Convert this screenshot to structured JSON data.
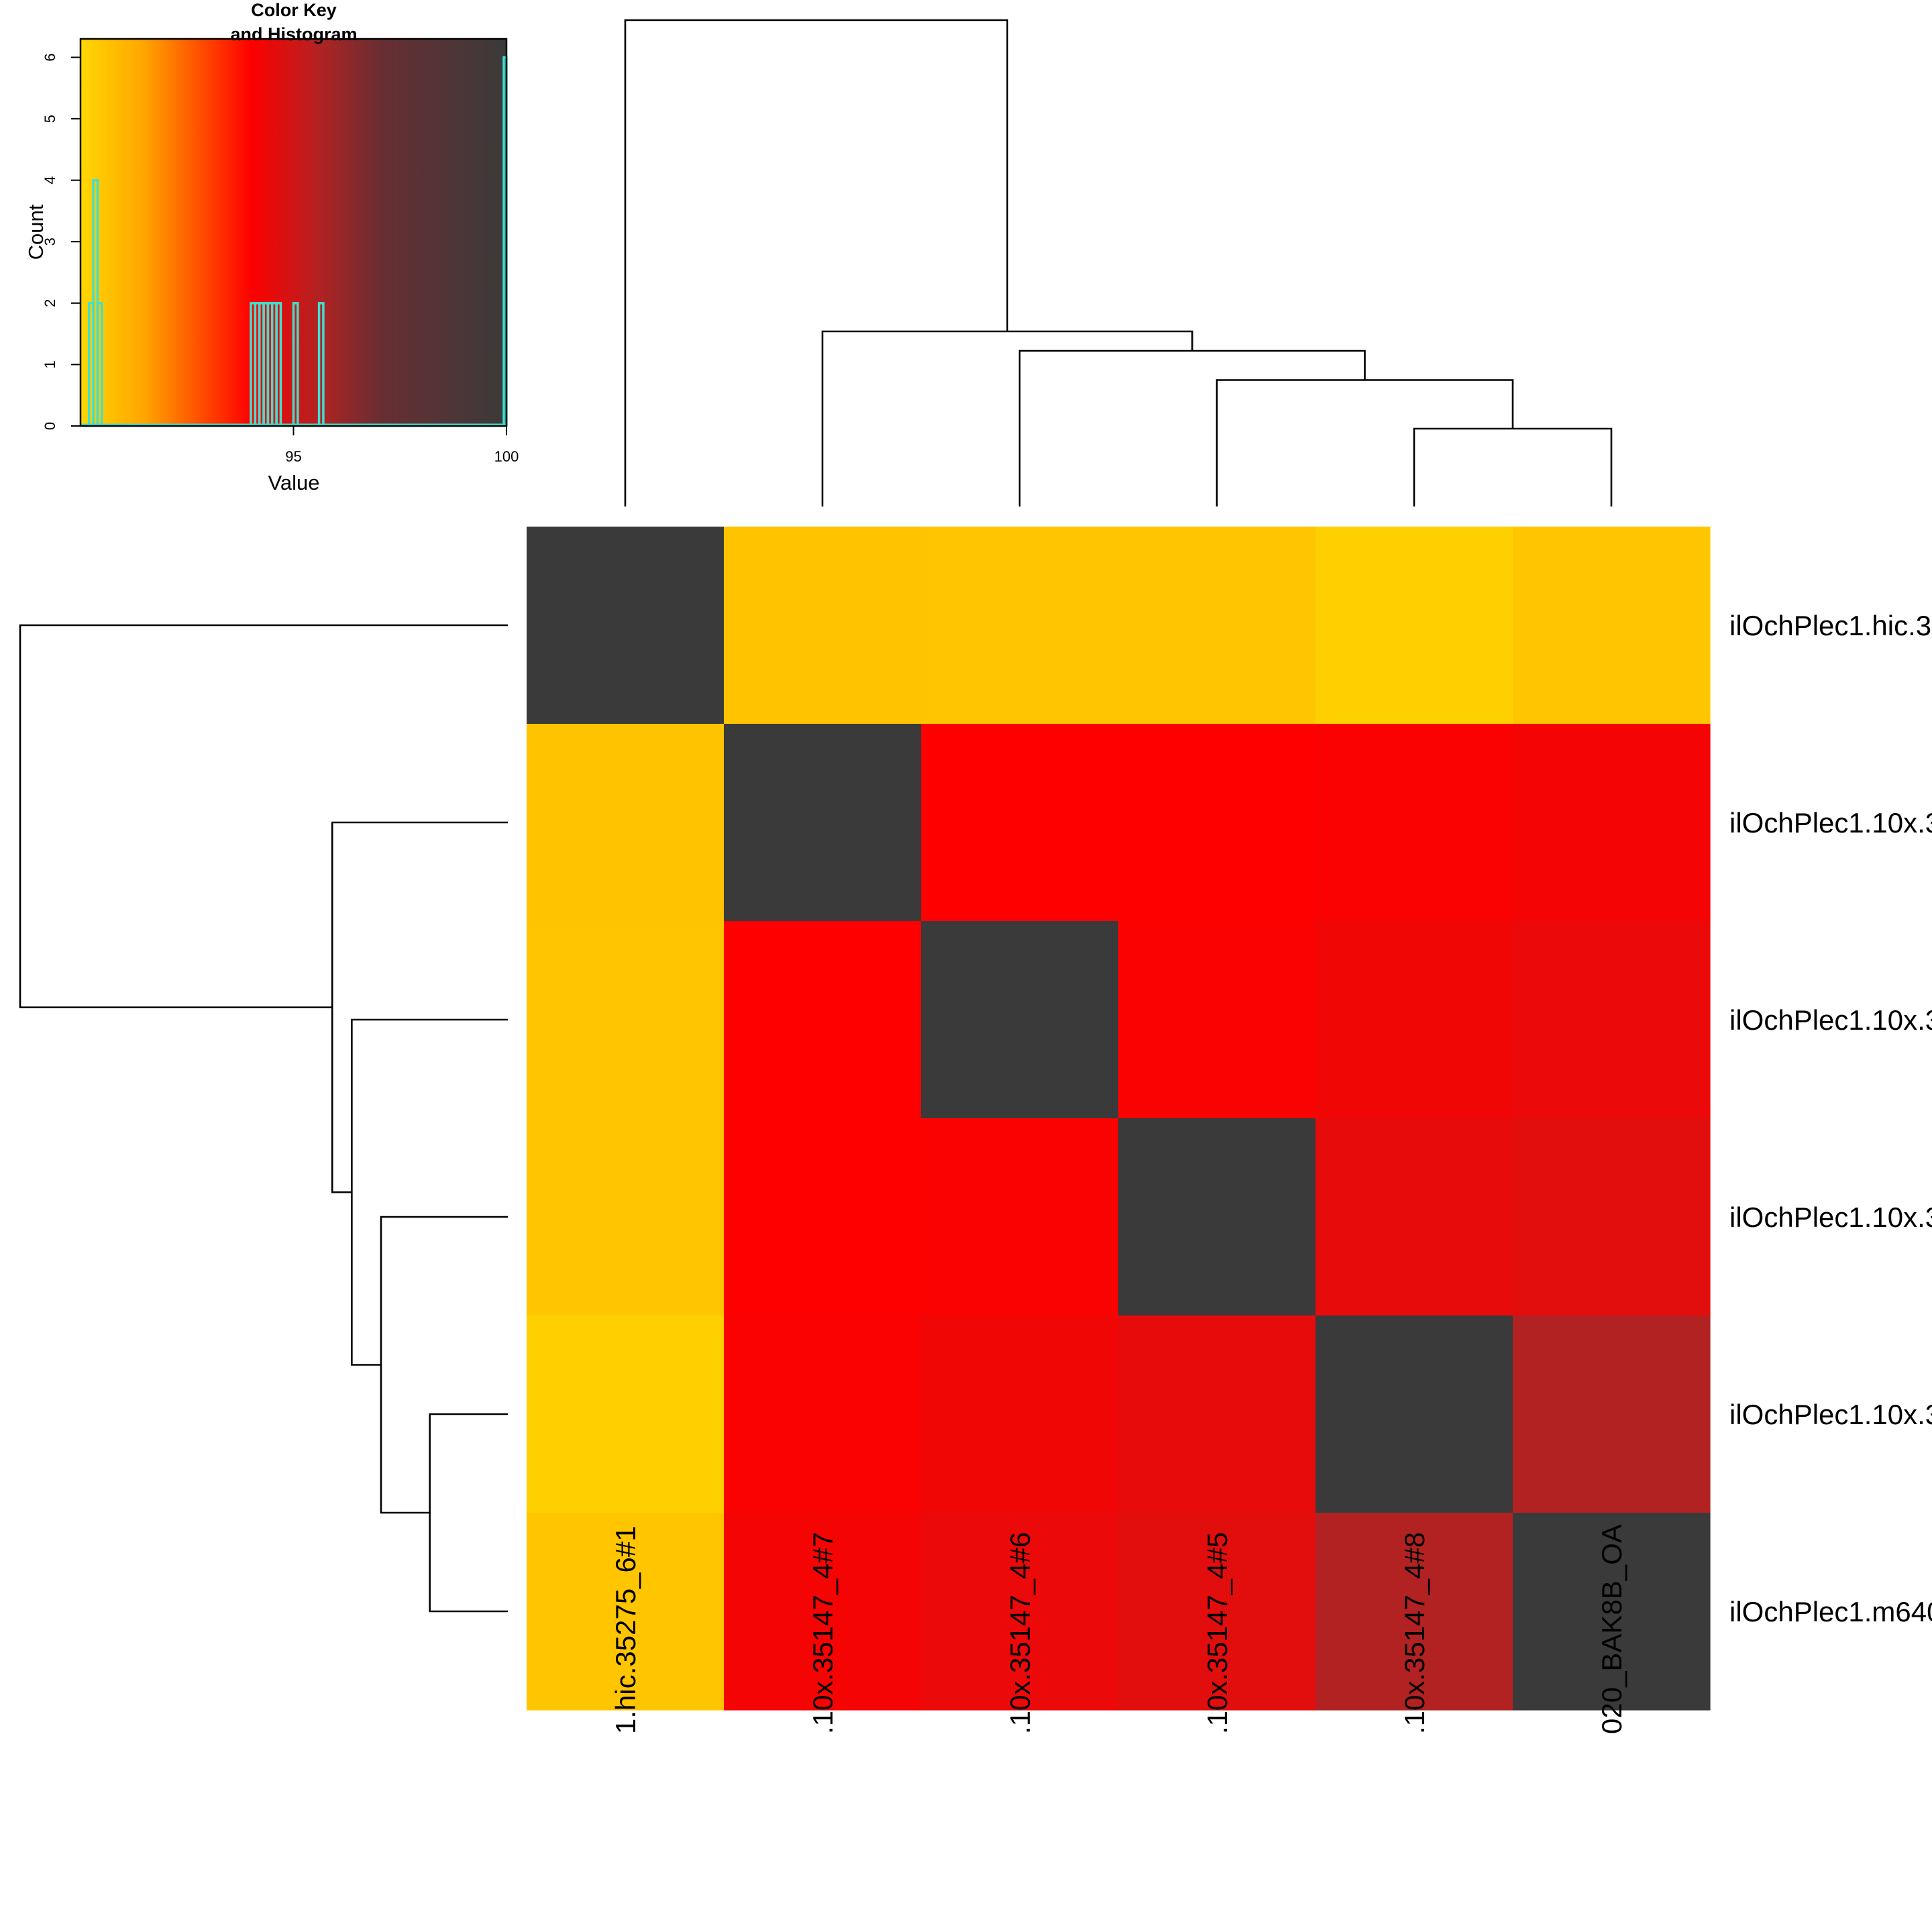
{
  "chart_data": [
    {
      "type": "heatmap",
      "title": "",
      "rows": [
        "ilOchPlec1.hic.3",
        "ilOchPlec1.10x.3",
        "ilOchPlec1.10x.3",
        "ilOchPlec1.10x.3",
        "ilOchPlec1.10x.3",
        "ilOchPlec1.m640"
      ],
      "columns": [
        "1.hic.35275_6#1",
        ".10x.35147_4#7",
        ".10x.35147_4#6",
        ".10x.35147_4#5",
        ".10x.35147_4#8",
        "020_BAK8B_OA"
      ],
      "values": [
        [
          100,
          90.6,
          90.5,
          90.5,
          90.2,
          90.5
        ],
        [
          90.6,
          100,
          94.0,
          94.0,
          94.1,
          94.2
        ],
        [
          90.5,
          94.0,
          100,
          94.1,
          94.3,
          94.4
        ],
        [
          90.5,
          94.0,
          94.1,
          100,
          94.5,
          94.6
        ],
        [
          90.2,
          94.1,
          94.3,
          94.5,
          100,
          95.6
        ],
        [
          90.5,
          94.2,
          94.4,
          94.6,
          95.6,
          100
        ]
      ],
      "color_scale": {
        "min": 90,
        "max": 100,
        "stops": [
          {
            "value": 90,
            "color": "#ffd700"
          },
          {
            "value": 91.5,
            "color": "#ffa500"
          },
          {
            "value": 94,
            "color": "#ff0000"
          },
          {
            "value": 95.6,
            "color": "#b22222"
          },
          {
            "value": 97,
            "color": "#6a2e32"
          },
          {
            "value": 100,
            "color": "#3a3a3a"
          }
        ]
      },
      "dendrogram": {
        "leaf_order": [
          0,
          1,
          2,
          3,
          4,
          5
        ],
        "heights_fraction": [
          1.0,
          0.36,
          0.32,
          0.26,
          0.16
        ]
      }
    },
    {
      "type": "histogram",
      "title": "Color Key\nand Histogram",
      "title_line1": "Color Key",
      "title_line2": "and Histogram",
      "xlabel": "Value",
      "ylabel": "Count",
      "xlim": [
        90,
        100
      ],
      "ylim": [
        0,
        6.3
      ],
      "xticks": [
        95,
        100
      ],
      "yticks": [
        0,
        1,
        2,
        3,
        4,
        5,
        6
      ],
      "line_color": "#40e0d0",
      "bins": [
        {
          "x": 90.2,
          "count": 2
        },
        {
          "x": 90.3,
          "count": 4
        },
        {
          "x": 90.4,
          "count": 2
        },
        {
          "x": 94.0,
          "count": 2
        },
        {
          "x": 94.1,
          "count": 2
        },
        {
          "x": 94.2,
          "count": 2
        },
        {
          "x": 94.3,
          "count": 2
        },
        {
          "x": 94.4,
          "count": 2
        },
        {
          "x": 94.5,
          "count": 2
        },
        {
          "x": 94.6,
          "count": 2
        },
        {
          "x": 95.0,
          "count": 2
        },
        {
          "x": 95.6,
          "count": 2
        },
        {
          "x": 100,
          "count": 6
        }
      ]
    }
  ]
}
